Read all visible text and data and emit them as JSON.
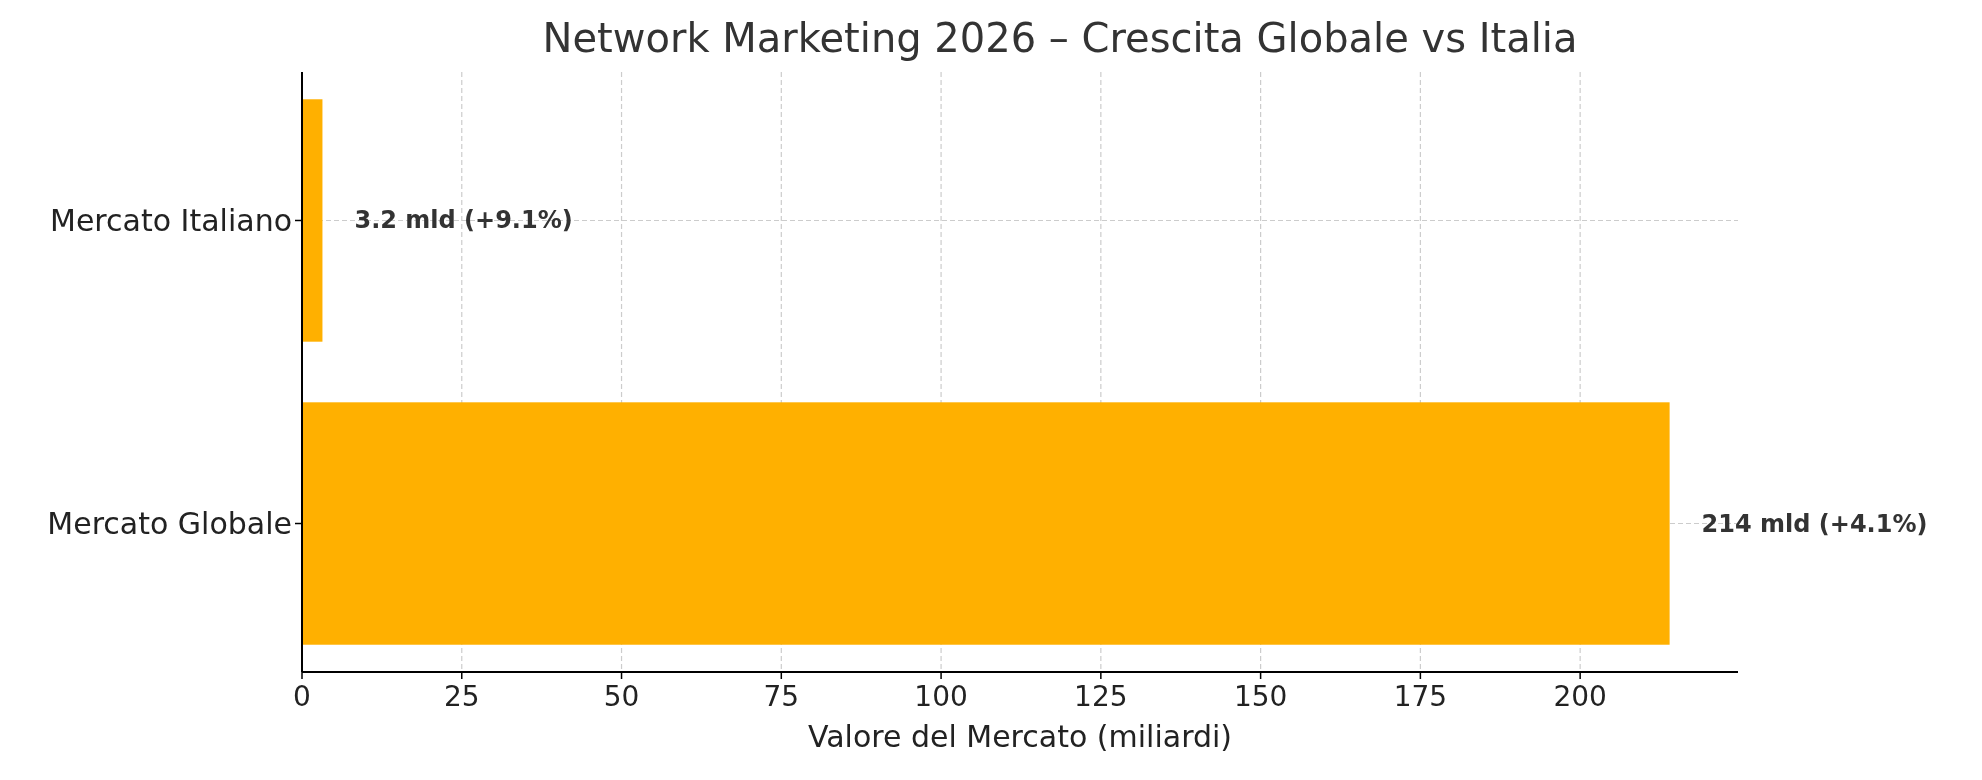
{
  "chart_data": {
    "type": "bar",
    "orientation": "horizontal",
    "title": "Network Marketing 2026 – Crescita Globale vs Italia",
    "xlabel": "Valore del Mercato (miliardi)",
    "categories": [
      "Mercato Italiano",
      "Mercato Globale"
    ],
    "values": [
      3.2,
      214
    ],
    "color": "#ffb000",
    "value_labels": [
      "3.2 mld (+9.1%)",
      "214 mld (+4.1%)"
    ],
    "xlim": [
      0,
      224.7
    ],
    "xticks": [
      0,
      25,
      50,
      75,
      100,
      125,
      150,
      175,
      200
    ],
    "grid": true
  }
}
